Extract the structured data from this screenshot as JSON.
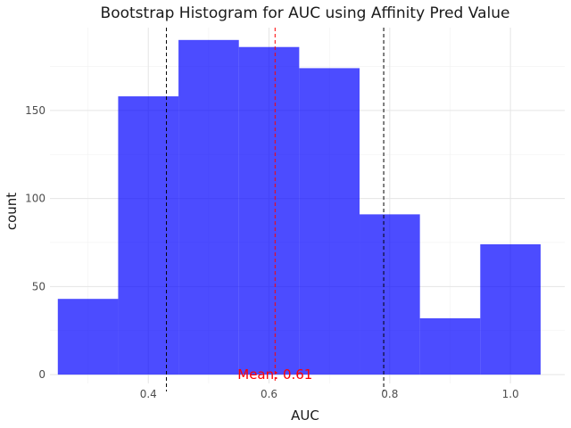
{
  "chart_data": {
    "type": "bar",
    "title": "Bootstrap Histogram for AUC using Affinity Pred Value",
    "xlabel": "AUC",
    "ylabel": "count",
    "xlim": [
      0.237,
      1.09
    ],
    "ylim": [
      -5,
      197
    ],
    "grid": true,
    "x_ticks": [
      {
        "value": 0.4,
        "label": "0.4"
      },
      {
        "value": 0.6,
        "label": "0.6"
      },
      {
        "value": 0.8,
        "label": "0.8"
      },
      {
        "value": 1.0,
        "label": "1.0"
      }
    ],
    "y_ticks": [
      {
        "value": 0,
        "label": "0"
      },
      {
        "value": 50,
        "label": "50"
      },
      {
        "value": 100,
        "label": "100"
      },
      {
        "value": 150,
        "label": "150"
      }
    ],
    "bins": [
      {
        "x0": 0.25,
        "x1": 0.35,
        "count": 43
      },
      {
        "x0": 0.35,
        "x1": 0.45,
        "count": 158
      },
      {
        "x0": 0.45,
        "x1": 0.55,
        "count": 190
      },
      {
        "x0": 0.55,
        "x1": 0.65,
        "count": 186
      },
      {
        "x0": 0.65,
        "x1": 0.75,
        "count": 174
      },
      {
        "x0": 0.75,
        "x1": 0.85,
        "count": 91
      },
      {
        "x0": 0.85,
        "x1": 0.95,
        "count": 32
      },
      {
        "x0": 0.95,
        "x1": 1.05,
        "count": 74
      }
    ],
    "ci_lower": 0.43,
    "ci_upper": 0.79,
    "mean": 0.61,
    "mean_label": "Mean: 0.61",
    "colors": {
      "bar": "#0000ff",
      "ci_line": "#000000",
      "mean": "#ff0000"
    }
  }
}
